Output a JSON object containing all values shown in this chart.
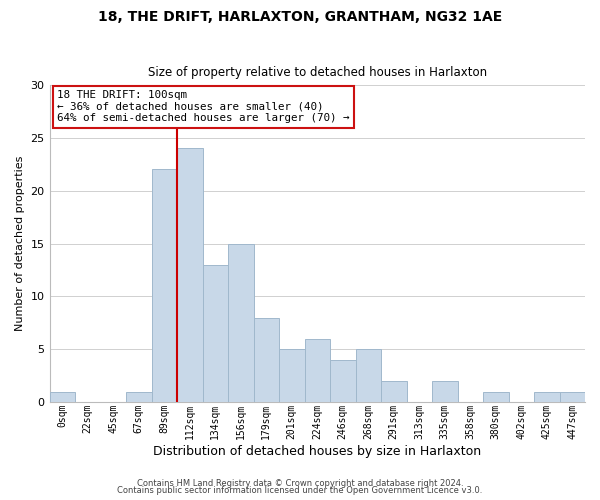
{
  "title": "18, THE DRIFT, HARLAXTON, GRANTHAM, NG32 1AE",
  "subtitle": "Size of property relative to detached houses in Harlaxton",
  "xlabel": "Distribution of detached houses by size in Harlaxton",
  "ylabel": "Number of detached properties",
  "bar_labels": [
    "0sqm",
    "22sqm",
    "45sqm",
    "67sqm",
    "89sqm",
    "112sqm",
    "134sqm",
    "156sqm",
    "179sqm",
    "201sqm",
    "224sqm",
    "246sqm",
    "268sqm",
    "291sqm",
    "313sqm",
    "335sqm",
    "358sqm",
    "380sqm",
    "402sqm",
    "425sqm",
    "447sqm"
  ],
  "bar_values": [
    1,
    0,
    0,
    1,
    22,
    24,
    13,
    15,
    8,
    5,
    6,
    4,
    5,
    2,
    0,
    2,
    0,
    1,
    0,
    1,
    1
  ],
  "bar_color": "#c8d8e8",
  "bar_edge_color": "#a0b8cc",
  "vline_x": 5,
  "vline_color": "#cc0000",
  "annotation_title": "18 THE DRIFT: 100sqm",
  "annotation_line1": "← 36% of detached houses are smaller (40)",
  "annotation_line2": "64% of semi-detached houses are larger (70) →",
  "ylim": [
    0,
    30
  ],
  "yticks": [
    0,
    5,
    10,
    15,
    20,
    25,
    30
  ],
  "footer1": "Contains HM Land Registry data © Crown copyright and database right 2024.",
  "footer2": "Contains public sector information licensed under the Open Government Licence v3.0.",
  "bg_color": "#ffffff",
  "grid_color": "#d0d0d0",
  "figwidth": 6.0,
  "figheight": 5.0,
  "dpi": 100
}
